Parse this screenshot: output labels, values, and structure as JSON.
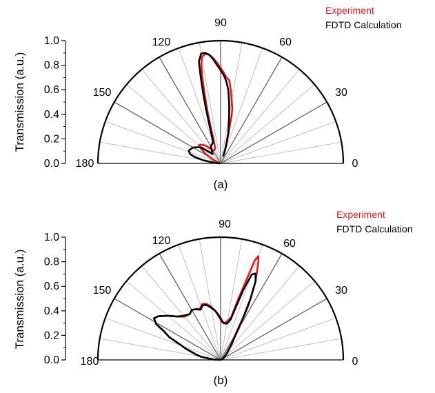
{
  "colors": {
    "experiment": "#e8141c",
    "fdtd": "#000000",
    "spoke": "#b0b0b0",
    "spoke_major": "#555555"
  },
  "chart_data": [
    {
      "type": "polar-line",
      "panel_label": "(a)",
      "ylabel": "Transmission (a.u.)",
      "r_ticks": [
        "0.0",
        "0.2",
        "0.4",
        "0.6",
        "0.8",
        "1.0"
      ],
      "angle_ticks": [
        "180",
        "150",
        "120",
        "90",
        "60",
        "30",
        "0"
      ],
      "rlim": [
        0,
        1.0
      ],
      "theta_range_deg": [
        0,
        180
      ],
      "legend": {
        "placement": "top-right",
        "entries": [
          "Experiment",
          "FDTD Calculation"
        ]
      },
      "series": [
        {
          "name": "Experiment",
          "color": "#e8141c",
          "points": [
            [
              70,
              0.08
            ],
            [
              72,
              0.14
            ],
            [
              74,
              0.2
            ],
            [
              76,
              0.3
            ],
            [
              77,
              0.4
            ],
            [
              78,
              0.46
            ],
            [
              80,
              0.52
            ],
            [
              82,
              0.6
            ],
            [
              84,
              0.68
            ],
            [
              86,
              0.7
            ],
            [
              88,
              0.74
            ],
            [
              90,
              0.78
            ],
            [
              92,
              0.82
            ],
            [
              94,
              0.86
            ],
            [
              96,
              0.89
            ],
            [
              98,
              0.9
            ],
            [
              100,
              0.88
            ],
            [
              101,
              0.82
            ],
            [
              102,
              0.72
            ],
            [
              103,
              0.58
            ],
            [
              104,
              0.45
            ],
            [
              105,
              0.33
            ],
            [
              106,
              0.22
            ],
            [
              108,
              0.16
            ],
            [
              110,
              0.13
            ],
            [
              115,
              0.12
            ],
            [
              120,
              0.12
            ],
            [
              125,
              0.15
            ],
            [
              130,
              0.19
            ],
            [
              136,
              0.22
            ],
            [
              140,
              0.23
            ],
            [
              143,
              0.2
            ],
            [
              148,
              0.14
            ],
            [
              155,
              0.06
            ],
            [
              160,
              0.02
            ],
            [
              170,
              0.0
            ]
          ]
        },
        {
          "name": "FDTD Calculation",
          "color": "#000000",
          "points": [
            [
              70,
              0.06
            ],
            [
              72,
              0.12
            ],
            [
              74,
              0.18
            ],
            [
              76,
              0.26
            ],
            [
              78,
              0.32
            ],
            [
              80,
              0.4
            ],
            [
              82,
              0.5
            ],
            [
              84,
              0.6
            ],
            [
              86,
              0.67
            ],
            [
              88,
              0.72
            ],
            [
              90,
              0.76
            ],
            [
              92,
              0.8
            ],
            [
              94,
              0.85
            ],
            [
              96,
              0.89
            ],
            [
              98,
              0.91
            ],
            [
              100,
              0.91
            ],
            [
              102,
              0.85
            ],
            [
              103,
              0.72
            ],
            [
              104,
              0.58
            ],
            [
              105,
              0.46
            ],
            [
              106,
              0.35
            ],
            [
              108,
              0.22
            ],
            [
              110,
              0.18
            ],
            [
              115,
              0.17
            ],
            [
              120,
              0.16
            ],
            [
              125,
              0.12
            ],
            [
              130,
              0.1
            ],
            [
              136,
              0.14
            ],
            [
              140,
              0.2
            ],
            [
              145,
              0.23
            ],
            [
              150,
              0.26
            ],
            [
              158,
              0.28
            ],
            [
              163,
              0.26
            ],
            [
              166,
              0.22
            ],
            [
              170,
              0.14
            ],
            [
              175,
              0.04
            ],
            [
              180,
              0.0
            ]
          ]
        }
      ]
    },
    {
      "type": "polar-line",
      "panel_label": "(b)",
      "ylabel": "Transmission (a.u.)",
      "r_ticks": [
        "0.0",
        "0.2",
        "0.4",
        "0.6",
        "0.8",
        "1.0"
      ],
      "angle_ticks": [
        "180",
        "150",
        "120",
        "90",
        "60",
        "30",
        "0"
      ],
      "rlim": [
        0,
        1.0
      ],
      "theta_range_deg": [
        0,
        180
      ],
      "legend": {
        "placement": "top-right",
        "entries": [
          "Experiment",
          "FDTD Calculation"
        ]
      },
      "series": [
        {
          "name": "Experiment",
          "color": "#e8141c",
          "points": [
            [
              0,
              0.0
            ],
            [
              30,
              0.02
            ],
            [
              45,
              0.06
            ],
            [
              55,
              0.14
            ],
            [
              60,
              0.3
            ],
            [
              63,
              0.5
            ],
            [
              66,
              0.7
            ],
            [
              69,
              0.86
            ],
            [
              70,
              0.9
            ],
            [
              71,
              0.86
            ],
            [
              72,
              0.7
            ],
            [
              74,
              0.5
            ],
            [
              76,
              0.36
            ],
            [
              80,
              0.32
            ],
            [
              85,
              0.3
            ],
            [
              88,
              0.31
            ],
            [
              90,
              0.33
            ],
            [
              93,
              0.36
            ],
            [
              96,
              0.4
            ],
            [
              100,
              0.44
            ],
            [
              104,
              0.47
            ],
            [
              108,
              0.48
            ],
            [
              112,
              0.45
            ],
            [
              116,
              0.46
            ],
            [
              120,
              0.47
            ],
            [
              124,
              0.45
            ],
            [
              130,
              0.46
            ],
            [
              135,
              0.5
            ],
            [
              140,
              0.56
            ],
            [
              145,
              0.62
            ],
            [
              148,
              0.64
            ],
            [
              151,
              0.6
            ],
            [
              153,
              0.52
            ],
            [
              156,
              0.46
            ],
            [
              159,
              0.36
            ],
            [
              162,
              0.3
            ],
            [
              165,
              0.24
            ],
            [
              168,
              0.2
            ],
            [
              171,
              0.16
            ],
            [
              176,
              0.06
            ],
            [
              180,
              0.0
            ]
          ]
        },
        {
          "name": "FDTD Calculation",
          "color": "#000000",
          "points": [
            [
              0,
              0.0
            ],
            [
              30,
              0.02
            ],
            [
              45,
              0.07
            ],
            [
              55,
              0.16
            ],
            [
              60,
              0.26
            ],
            [
              62,
              0.4
            ],
            [
              64,
              0.56
            ],
            [
              66,
              0.7
            ],
            [
              68,
              0.76
            ],
            [
              70,
              0.74
            ],
            [
              72,
              0.6
            ],
            [
              74,
              0.44
            ],
            [
              76,
              0.34
            ],
            [
              80,
              0.3
            ],
            [
              85,
              0.3
            ],
            [
              88,
              0.32
            ],
            [
              90,
              0.34
            ],
            [
              93,
              0.37
            ],
            [
              96,
              0.4
            ],
            [
              100,
              0.43
            ],
            [
              104,
              0.46
            ],
            [
              108,
              0.47
            ],
            [
              112,
              0.44
            ],
            [
              116,
              0.46
            ],
            [
              120,
              0.47
            ],
            [
              124,
              0.45
            ],
            [
              130,
              0.47
            ],
            [
              135,
              0.5
            ],
            [
              140,
              0.56
            ],
            [
              145,
              0.62
            ],
            [
              148,
              0.64
            ],
            [
              151,
              0.6
            ],
            [
              153,
              0.52
            ],
            [
              156,
              0.46
            ],
            [
              159,
              0.36
            ],
            [
              162,
              0.3
            ],
            [
              165,
              0.24
            ],
            [
              168,
              0.2
            ],
            [
              171,
              0.16
            ],
            [
              176,
              0.06
            ],
            [
              180,
              0.0
            ]
          ]
        }
      ]
    }
  ]
}
